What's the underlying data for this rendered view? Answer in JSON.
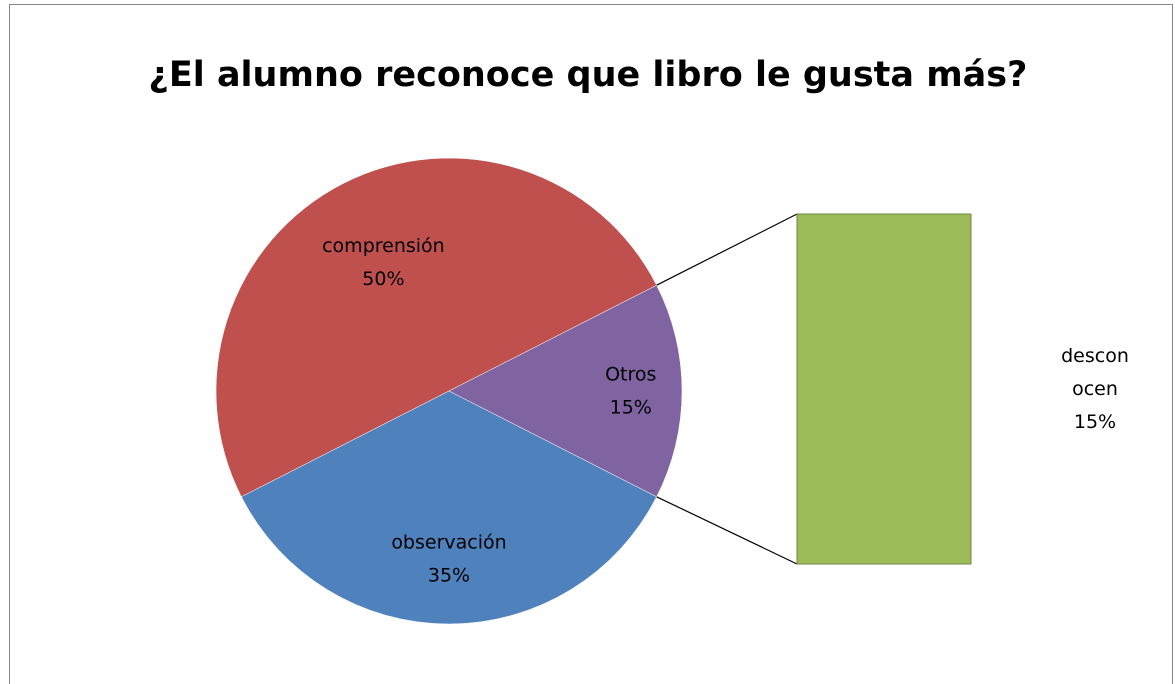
{
  "chart_data": {
    "type": "pie",
    "title": "¿El alumno reconoce que libro le gusta más?",
    "categories": [
      "comprensión",
      "observación",
      "Otros"
    ],
    "values": [
      50,
      35,
      15
    ],
    "value_labels": [
      "50%",
      "35%",
      "15%"
    ],
    "colors": [
      "#c0504d",
      "#4f81bd",
      "#8064a2"
    ],
    "bar_of_pie": {
      "categories": [
        "desconocen"
      ],
      "values": [
        15
      ],
      "value_labels": [
        "15%"
      ],
      "color": "#9bbb59"
    }
  }
}
